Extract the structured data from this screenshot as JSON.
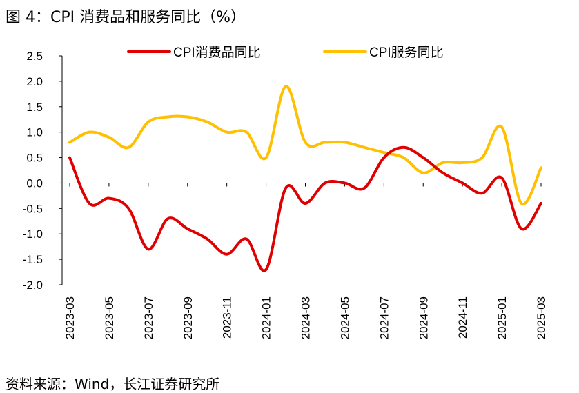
{
  "header": {
    "title": "图 4：CPI 消费品和服务同比（%）"
  },
  "footer": {
    "source": "资料来源：Wind，长江证券研究所"
  },
  "colors": {
    "consumer": "#e00000",
    "services": "#ffc000"
  },
  "chart_data": {
    "type": "line",
    "title": "图 4：CPI 消费品和服务同比（%）",
    "xlabel": "",
    "ylabel": "",
    "ylim": [
      -2.0,
      2.5
    ],
    "yticks": [
      "2.5",
      "2.0",
      "1.5",
      "1.0",
      "0.5",
      "0.0",
      "-0.5",
      "-1.0",
      "-1.5",
      "-2.0"
    ],
    "x": [
      "2023-03",
      "2023-04",
      "2023-05",
      "2023-06",
      "2023-07",
      "2023-08",
      "2023-09",
      "2023-10",
      "2023-11",
      "2023-12",
      "2024-01",
      "2024-02",
      "2024-03",
      "2024-04",
      "2024-05",
      "2024-06",
      "2024-07",
      "2024-08",
      "2024-09",
      "2024-10",
      "2024-11",
      "2024-12",
      "2025-01",
      "2025-02",
      "2025-03"
    ],
    "xticks": [
      "2023-03",
      "2023-05",
      "2023-07",
      "2023-09",
      "2023-11",
      "2024-01",
      "2024-03",
      "2024-05",
      "2024-07",
      "2024-09",
      "2024-11",
      "2025-01",
      "2025-03"
    ],
    "legend": "top",
    "grid": false,
    "series": [
      {
        "name": "CPI消费品同比",
        "values": [
          0.5,
          -0.4,
          -0.3,
          -0.5,
          -1.3,
          -0.7,
          -0.9,
          -1.1,
          -1.4,
          -1.1,
          -1.7,
          -0.1,
          -0.4,
          0.0,
          0.0,
          -0.1,
          0.5,
          0.7,
          0.5,
          0.2,
          0.0,
          -0.2,
          0.1,
          -0.9,
          -0.4
        ]
      },
      {
        "name": "CPI服务同比",
        "values": [
          0.8,
          1.0,
          0.9,
          0.7,
          1.2,
          1.3,
          1.3,
          1.2,
          1.0,
          1.0,
          0.5,
          1.9,
          0.8,
          0.8,
          0.8,
          0.7,
          0.6,
          0.5,
          0.2,
          0.4,
          0.4,
          0.5,
          1.1,
          -0.4,
          0.3
        ]
      }
    ]
  }
}
